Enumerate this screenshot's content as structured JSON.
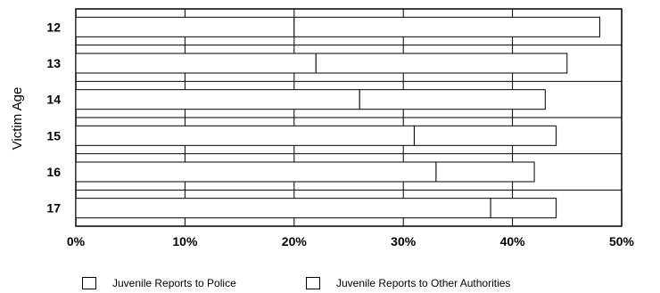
{
  "chart_data": {
    "type": "bar",
    "orientation": "horizontal",
    "stacked": true,
    "categories": [
      "12",
      "13",
      "14",
      "15",
      "16",
      "17"
    ],
    "series": [
      {
        "name": "Juvenile Reports to Police",
        "values": [
          20,
          22,
          26,
          31,
          33,
          38
        ],
        "color": "#ffffff"
      },
      {
        "name": "Juvenile Reports to Other Authorities",
        "values": [
          28,
          23,
          17,
          13,
          9,
          6
        ],
        "color": "#ffffff"
      }
    ],
    "xticks": [
      "0%",
      "10%",
      "20%",
      "30%",
      "40%",
      "50%"
    ],
    "xlim": [
      0,
      50
    ],
    "ylabel": "Victim Age",
    "xlabel": "",
    "grid": true,
    "legend_position": "bottom"
  }
}
